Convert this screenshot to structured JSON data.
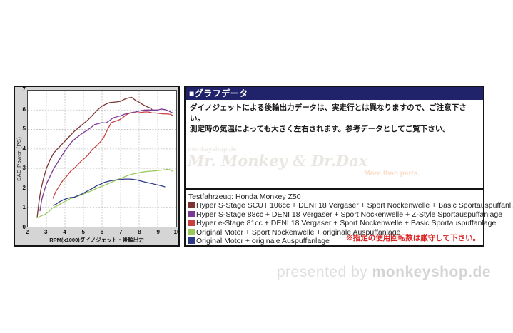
{
  "chart_data": {
    "type": "line",
    "title": "",
    "xlabel": "RPM(x1000)ダイノジェット・後輪出力",
    "ylabel": "SAE Power (PS)",
    "xlim": [
      2,
      10
    ],
    "ylim": [
      0,
      7
    ],
    "x_ticks": [
      2,
      3,
      4,
      5,
      6,
      7,
      8,
      9,
      10
    ],
    "y_ticks": [
      0,
      1,
      2,
      3,
      4,
      5,
      6,
      7
    ],
    "grid": true,
    "legend_position": "separate-box-right",
    "series": [
      {
        "name": "Hyper S-Stage SCUT 106cc + DENI 18 Vergaser + Sport Nockenwelle + Basic Sportauspuffanl.",
        "color": "#7b3333",
        "points": [
          [
            2.5,
            0.45
          ],
          [
            2.6,
            1.3
          ],
          [
            2.7,
            1.9
          ],
          [
            2.85,
            2.5
          ],
          [
            3.0,
            3.0
          ],
          [
            3.2,
            3.45
          ],
          [
            3.4,
            3.8
          ],
          [
            3.6,
            4.0
          ],
          [
            3.8,
            4.2
          ],
          [
            4.0,
            4.4
          ],
          [
            4.25,
            4.65
          ],
          [
            4.5,
            4.9
          ],
          [
            4.75,
            5.1
          ],
          [
            5.0,
            5.3
          ],
          [
            5.25,
            5.5
          ],
          [
            5.5,
            5.75
          ],
          [
            5.75,
            6.0
          ],
          [
            6.0,
            6.2
          ],
          [
            6.2,
            6.3
          ],
          [
            6.4,
            6.38
          ],
          [
            6.6,
            6.4
          ],
          [
            6.8,
            6.42
          ],
          [
            7.0,
            6.45
          ],
          [
            7.2,
            6.55
          ],
          [
            7.4,
            6.62
          ],
          [
            7.6,
            6.65
          ],
          [
            7.8,
            6.5
          ],
          [
            8.0,
            6.4
          ],
          [
            8.2,
            6.28
          ],
          [
            8.4,
            6.18
          ],
          [
            8.6,
            6.1
          ],
          [
            8.7,
            6.02
          ]
        ]
      },
      {
        "name": "Hyper S-Stage 88cc + DENI 18 Vergaser + Sport Nockenwelle + Z-Style Sportauspuffanlage",
        "color": "#7a3a96",
        "points": [
          [
            2.65,
            0.8
          ],
          [
            2.75,
            1.4
          ],
          [
            2.9,
            1.9
          ],
          [
            3.0,
            2.2
          ],
          [
            3.2,
            2.6
          ],
          [
            3.4,
            3.0
          ],
          [
            3.6,
            3.3
          ],
          [
            3.8,
            3.6
          ],
          [
            4.0,
            3.9
          ],
          [
            4.2,
            4.15
          ],
          [
            4.4,
            4.4
          ],
          [
            4.6,
            4.55
          ],
          [
            4.8,
            4.7
          ],
          [
            5.0,
            4.85
          ],
          [
            5.2,
            4.95
          ],
          [
            5.4,
            5.1
          ],
          [
            5.6,
            5.25
          ],
          [
            5.8,
            5.3
          ],
          [
            6.0,
            5.35
          ],
          [
            6.2,
            5.33
          ],
          [
            6.4,
            5.45
          ],
          [
            6.6,
            5.6
          ],
          [
            6.8,
            5.65
          ],
          [
            7.0,
            5.7
          ],
          [
            7.2,
            5.78
          ],
          [
            7.4,
            5.83
          ],
          [
            7.6,
            5.87
          ],
          [
            7.8,
            5.9
          ],
          [
            8.0,
            5.95
          ],
          [
            8.3,
            6.0
          ],
          [
            8.6,
            6.0
          ],
          [
            9.0,
            6.0
          ],
          [
            9.2,
            6.05
          ],
          [
            9.4,
            6.02
          ],
          [
            9.6,
            5.95
          ],
          [
            9.8,
            5.85
          ]
        ]
      },
      {
        "name": "Hyper e-Stage 81cc + DENI 18 Vergaser + Sport Nockenwelle + Basic Sportauspuffanlage",
        "color": "#c84040",
        "points": [
          [
            3.35,
            1.45
          ],
          [
            3.5,
            1.8
          ],
          [
            3.7,
            2.1
          ],
          [
            3.9,
            2.4
          ],
          [
            4.1,
            2.6
          ],
          [
            4.3,
            2.85
          ],
          [
            4.5,
            3.0
          ],
          [
            4.7,
            3.2
          ],
          [
            4.9,
            3.4
          ],
          [
            5.1,
            3.55
          ],
          [
            5.3,
            3.75
          ],
          [
            5.5,
            4.0
          ],
          [
            5.7,
            4.15
          ],
          [
            5.9,
            4.35
          ],
          [
            6.1,
            4.6
          ],
          [
            6.3,
            5.0
          ],
          [
            6.5,
            5.35
          ],
          [
            6.7,
            5.42
          ],
          [
            6.9,
            5.48
          ],
          [
            7.1,
            5.6
          ],
          [
            7.3,
            5.75
          ],
          [
            7.5,
            5.85
          ],
          [
            7.7,
            5.85
          ],
          [
            7.9,
            5.85
          ],
          [
            8.1,
            5.88
          ],
          [
            8.3,
            5.9
          ],
          [
            8.5,
            5.9
          ],
          [
            8.7,
            5.85
          ],
          [
            8.9,
            5.85
          ],
          [
            9.1,
            5.82
          ],
          [
            9.3,
            5.8
          ],
          [
            9.5,
            5.8
          ],
          [
            9.7,
            5.78
          ],
          [
            9.8,
            5.72
          ]
        ]
      },
      {
        "name": "Original Motor + Sport Nockenwelle + originale Auspuffanlage",
        "color": "#9aca5a",
        "points": [
          [
            2.5,
            0.45
          ],
          [
            2.7,
            0.55
          ],
          [
            2.9,
            0.62
          ],
          [
            3.1,
            0.75
          ],
          [
            3.3,
            0.95
          ],
          [
            3.5,
            1.05
          ],
          [
            3.7,
            1.15
          ],
          [
            3.9,
            1.25
          ],
          [
            4.1,
            1.35
          ],
          [
            4.3,
            1.45
          ],
          [
            4.5,
            1.5
          ],
          [
            4.7,
            1.58
          ],
          [
            4.9,
            1.65
          ],
          [
            5.1,
            1.72
          ],
          [
            5.3,
            1.8
          ],
          [
            5.5,
            1.88
          ],
          [
            5.7,
            1.97
          ],
          [
            5.9,
            2.05
          ],
          [
            6.1,
            2.12
          ],
          [
            6.3,
            2.2
          ],
          [
            6.5,
            2.28
          ],
          [
            6.7,
            2.37
          ],
          [
            6.9,
            2.45
          ],
          [
            7.1,
            2.52
          ],
          [
            7.3,
            2.6
          ],
          [
            7.5,
            2.67
          ],
          [
            7.7,
            2.72
          ],
          [
            7.9,
            2.76
          ],
          [
            8.1,
            2.8
          ],
          [
            8.3,
            2.83
          ],
          [
            8.5,
            2.85
          ],
          [
            8.7,
            2.86
          ],
          [
            8.9,
            2.88
          ],
          [
            9.1,
            2.9
          ],
          [
            9.3,
            2.92
          ],
          [
            9.5,
            2.95
          ],
          [
            9.65,
            2.93
          ],
          [
            9.8,
            2.85
          ]
        ]
      },
      {
        "name": "Original Motor + originale Auspuffanlage",
        "color": "#2f3a87",
        "points": [
          [
            3.35,
            1.1
          ],
          [
            3.5,
            1.15
          ],
          [
            3.7,
            1.28
          ],
          [
            3.9,
            1.38
          ],
          [
            4.1,
            1.45
          ],
          [
            4.3,
            1.5
          ],
          [
            4.5,
            1.52
          ],
          [
            4.7,
            1.6
          ],
          [
            4.9,
            1.68
          ],
          [
            5.1,
            1.78
          ],
          [
            5.3,
            1.88
          ],
          [
            5.5,
            1.98
          ],
          [
            5.7,
            2.1
          ],
          [
            5.9,
            2.18
          ],
          [
            6.1,
            2.27
          ],
          [
            6.3,
            2.33
          ],
          [
            6.5,
            2.37
          ],
          [
            6.7,
            2.4
          ],
          [
            6.9,
            2.42
          ],
          [
            7.1,
            2.44
          ],
          [
            7.3,
            2.45
          ],
          [
            7.5,
            2.45
          ],
          [
            7.7,
            2.43
          ],
          [
            7.9,
            2.4
          ],
          [
            8.1,
            2.35
          ],
          [
            8.3,
            2.3
          ],
          [
            8.5,
            2.26
          ],
          [
            8.7,
            2.22
          ],
          [
            8.9,
            2.17
          ],
          [
            9.1,
            2.13
          ],
          [
            9.3,
            2.08
          ],
          [
            9.4,
            2.05
          ]
        ]
      }
    ]
  },
  "info_panel": {
    "header": "■グラフデータ",
    "note_lines": [
      "ダイノジェットによる後輪出力データは、実走行とは異なりますので、ご注意下さい。",
      "測定時の気温によっても大きく左右されます。参考データとしてご覧下さい。"
    ],
    "watermark": {
      "small": "monkeyshop.de",
      "main": "Mr. Monkey & Dr.Dax",
      "tagline": "More than parts."
    }
  },
  "legend": {
    "test_vehicle": "Testfahrzeug: Honda Monkey Z50",
    "items": [
      {
        "color": "#7b3333",
        "label": "Hyper S-Stage SCUT 106cc + DENI 18 Vergaser + Sport Nockenwelle + Basic Sportauspuffanl."
      },
      {
        "color": "#7a3a96",
        "label": "Hyper S-Stage 88cc + DENI 18 Vergaser + Sport Nockenwelle + Z-Style Sportauspuffanlage"
      },
      {
        "color": "#c84040",
        "label": "Hyper e-Stage 81cc + DENI 18 Vergaser + Sport Nockenwelle + Basic Sportauspuffanlage"
      },
      {
        "color": "#9aca5a",
        "label": "Original Motor + Sport Nockenwelle + originale Auspuffanlage"
      },
      {
        "color": "#2f3a87",
        "label": "Original Motor + originale Auspuffanlage"
      }
    ],
    "warning": "※指定の使用回転数は厳守して下さい。",
    "warning_color": "#dd2222"
  },
  "footer": {
    "presented_by": "presented by",
    "brand": "monkeyshop.de"
  },
  "colors": {
    "panel_header_bg": "#20226a",
    "chart_bg": "#d5d5d5",
    "grid": "#bcbcbc",
    "border": "#141414"
  }
}
